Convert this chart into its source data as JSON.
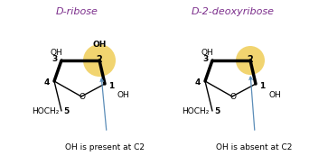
{
  "title_left": "D-ribose",
  "title_right": "D-2-deoxyribose",
  "title_color": "#7B2D8B",
  "title_fontsize": 8,
  "bg_color": "#ffffff",
  "annotation_color": "#5B8DB8",
  "highlight_color": "#F0D060",
  "highlight_alpha": 0.9,
  "caption_left": "OH is present at C2",
  "caption_right": "OH is absent at C2",
  "caption_fontsize": 6.5,
  "lw_thin": 1.0,
  "lw_thick": 2.5
}
